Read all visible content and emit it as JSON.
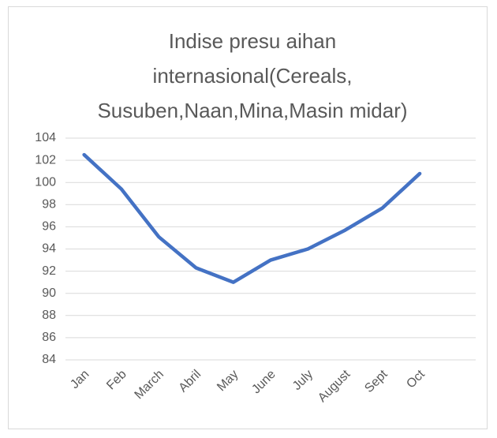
{
  "chart_data": {
    "type": "line",
    "title": "Indise presu aihan internasional(Cereals, Susuben,Naan,Mina,Masin midar)",
    "categories": [
      "Jan",
      "Feb",
      "March",
      "Abril",
      "May",
      "June",
      "July",
      "August",
      "Sept",
      "Oct",
      null
    ],
    "series": [
      {
        "name": "Indise",
        "color": "#4472c4",
        "values": [
          102.5,
          99.4,
          95.1,
          92.3,
          91.0,
          93.0,
          94.0,
          95.7,
          97.7,
          100.8,
          null
        ]
      }
    ],
    "ylim": [
      84,
      104
    ],
    "yticks": [
      84,
      86,
      88,
      90,
      92,
      94,
      96,
      98,
      100,
      102,
      104
    ],
    "grid": true,
    "legend": false
  }
}
